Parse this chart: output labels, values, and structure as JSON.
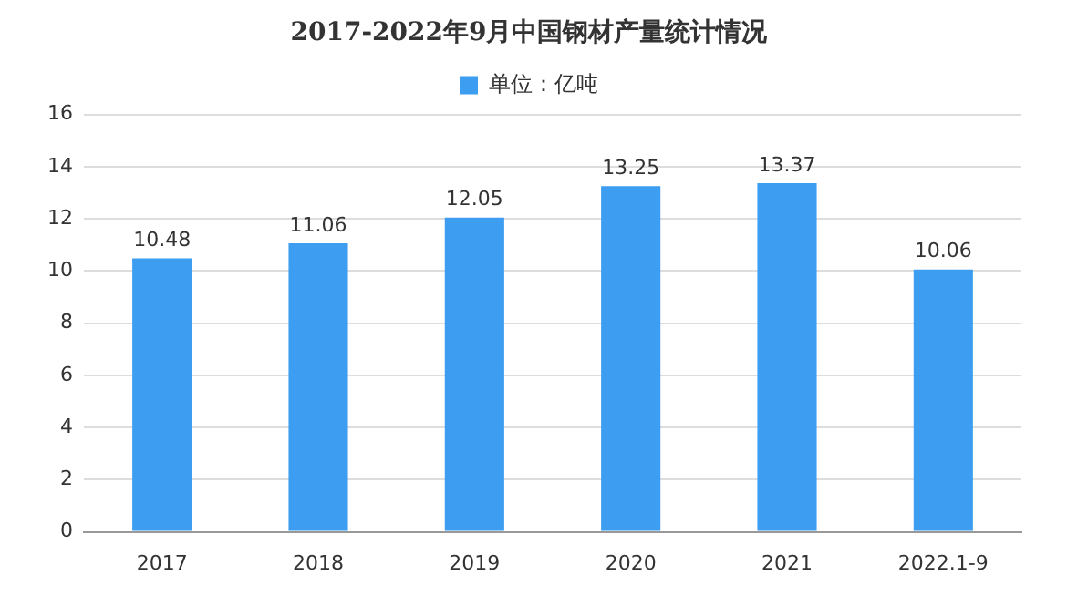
{
  "chart_data": {
    "type": "bar",
    "title": "2017-2022年9月中国钢材产量统计情况",
    "categories": [
      "2017",
      "2018",
      "2019",
      "2020",
      "2021",
      "2022.1-9"
    ],
    "series": [
      {
        "name": "单位：亿吨",
        "color": "#3d9df0",
        "values": [
          10.48,
          11.06,
          12.05,
          13.25,
          13.37,
          10.06
        ]
      }
    ],
    "ylim": [
      0,
      16
    ],
    "yticks": [
      0,
      2,
      4,
      6,
      8,
      10,
      12,
      14,
      16
    ],
    "grid": "y",
    "legend": "top",
    "data_labels": true
  }
}
